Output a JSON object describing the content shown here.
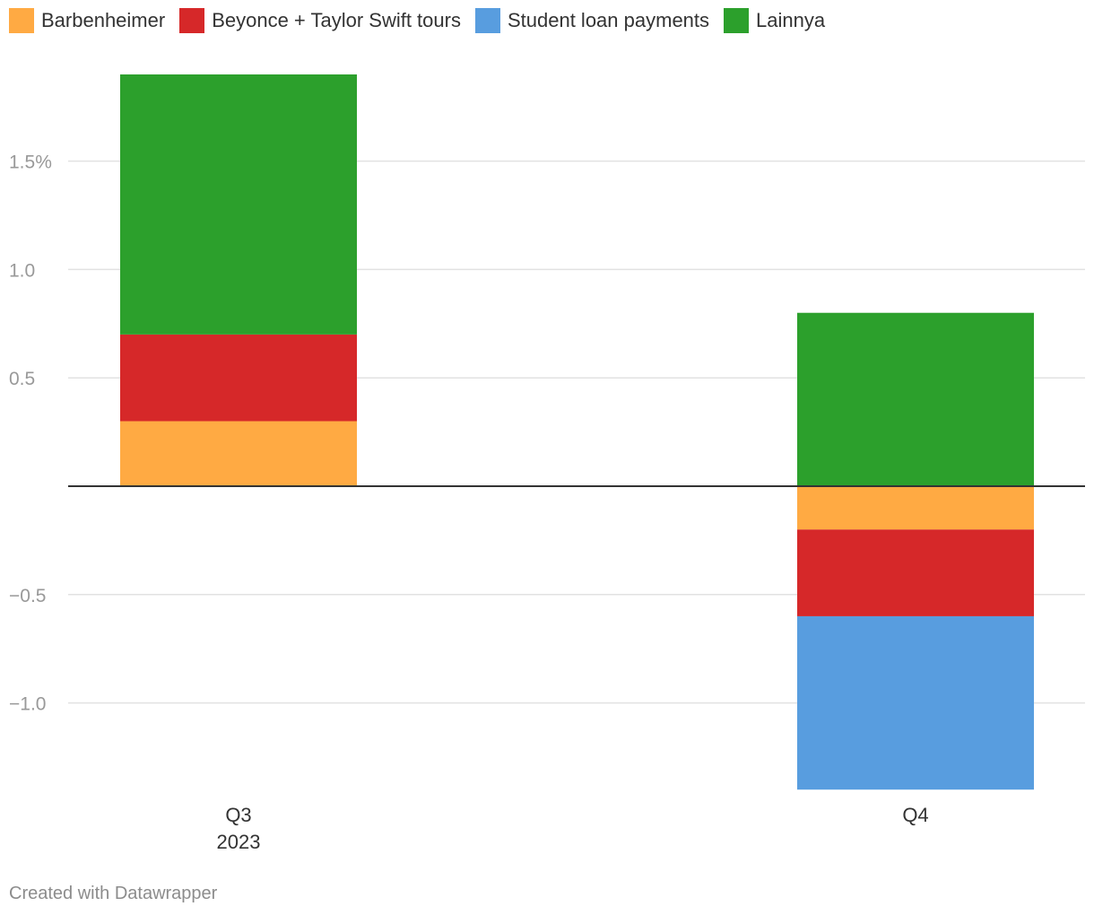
{
  "chart_data": {
    "type": "bar",
    "stacked": true,
    "categories": [
      "Q3",
      "Q4"
    ],
    "category_sublabels": [
      "2023",
      ""
    ],
    "series": [
      {
        "name": "Barbenheimer",
        "color": "#ffaa43",
        "values": [
          0.3,
          -0.2
        ]
      },
      {
        "name": "Beyonce + Taylor Swift tours",
        "color": "#d62829",
        "values": [
          0.4,
          -0.4
        ]
      },
      {
        "name": "Student loan payments",
        "color": "#589ddf",
        "values": [
          0,
          -0.8
        ]
      },
      {
        "name": "Lainnya",
        "color": "#2ca02c",
        "values": [
          1.2,
          0.8
        ]
      }
    ],
    "ylim": [
      -1.4,
      1.9
    ],
    "yticks": [
      -1.0,
      -0.5,
      0.5,
      1.0,
      1.5
    ],
    "ytick_labels": [
      "−1.0",
      "−0.5",
      "0.5",
      "1.0",
      "1.5%"
    ],
    "grid": true,
    "legend_position": "top-left"
  },
  "footer": {
    "credit": "Created with Datawrapper"
  }
}
